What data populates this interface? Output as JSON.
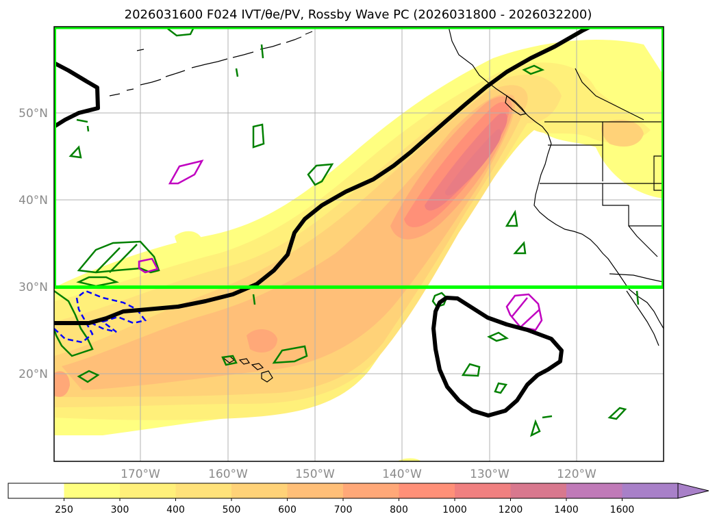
{
  "title": "2026031600 F024 IVT/θe/PV, Rossby Wave PC (2026031800 - 2026032200)",
  "lat_labels": [
    "50°N",
    "40°N",
    "30°N",
    "20°N"
  ],
  "lon_labels": [
    "170°W",
    "160°W",
    "150°W",
    "140°W",
    "130°W",
    "120°W"
  ],
  "colorbar": {
    "levels": [
      "250",
      "300",
      "400",
      "500",
      "600",
      "700",
      "800",
      "1000",
      "1200",
      "1400",
      "1600"
    ],
    "colors": [
      "#ffffff",
      "#ffff80",
      "#fff07a",
      "#ffe27a",
      "#ffd278",
      "#ffbf78",
      "#ffa878",
      "#ff9078",
      "#f08080",
      "#d8788e",
      "#c07ab8",
      "#a880c8"
    ],
    "extend": "max"
  },
  "map": {
    "lat_range": [
      10,
      60
    ],
    "lon_range": [
      -180,
      -110
    ],
    "box_color": "#00ff00",
    "box": {
      "lon_min": -180,
      "lon_max": -110,
      "lat_min": 30,
      "lat_max": 60
    },
    "pv_color": "#008000",
    "theta_color": "#c000c0",
    "negative_color": "#0000ff",
    "rossby_color": "#000000"
  }
}
